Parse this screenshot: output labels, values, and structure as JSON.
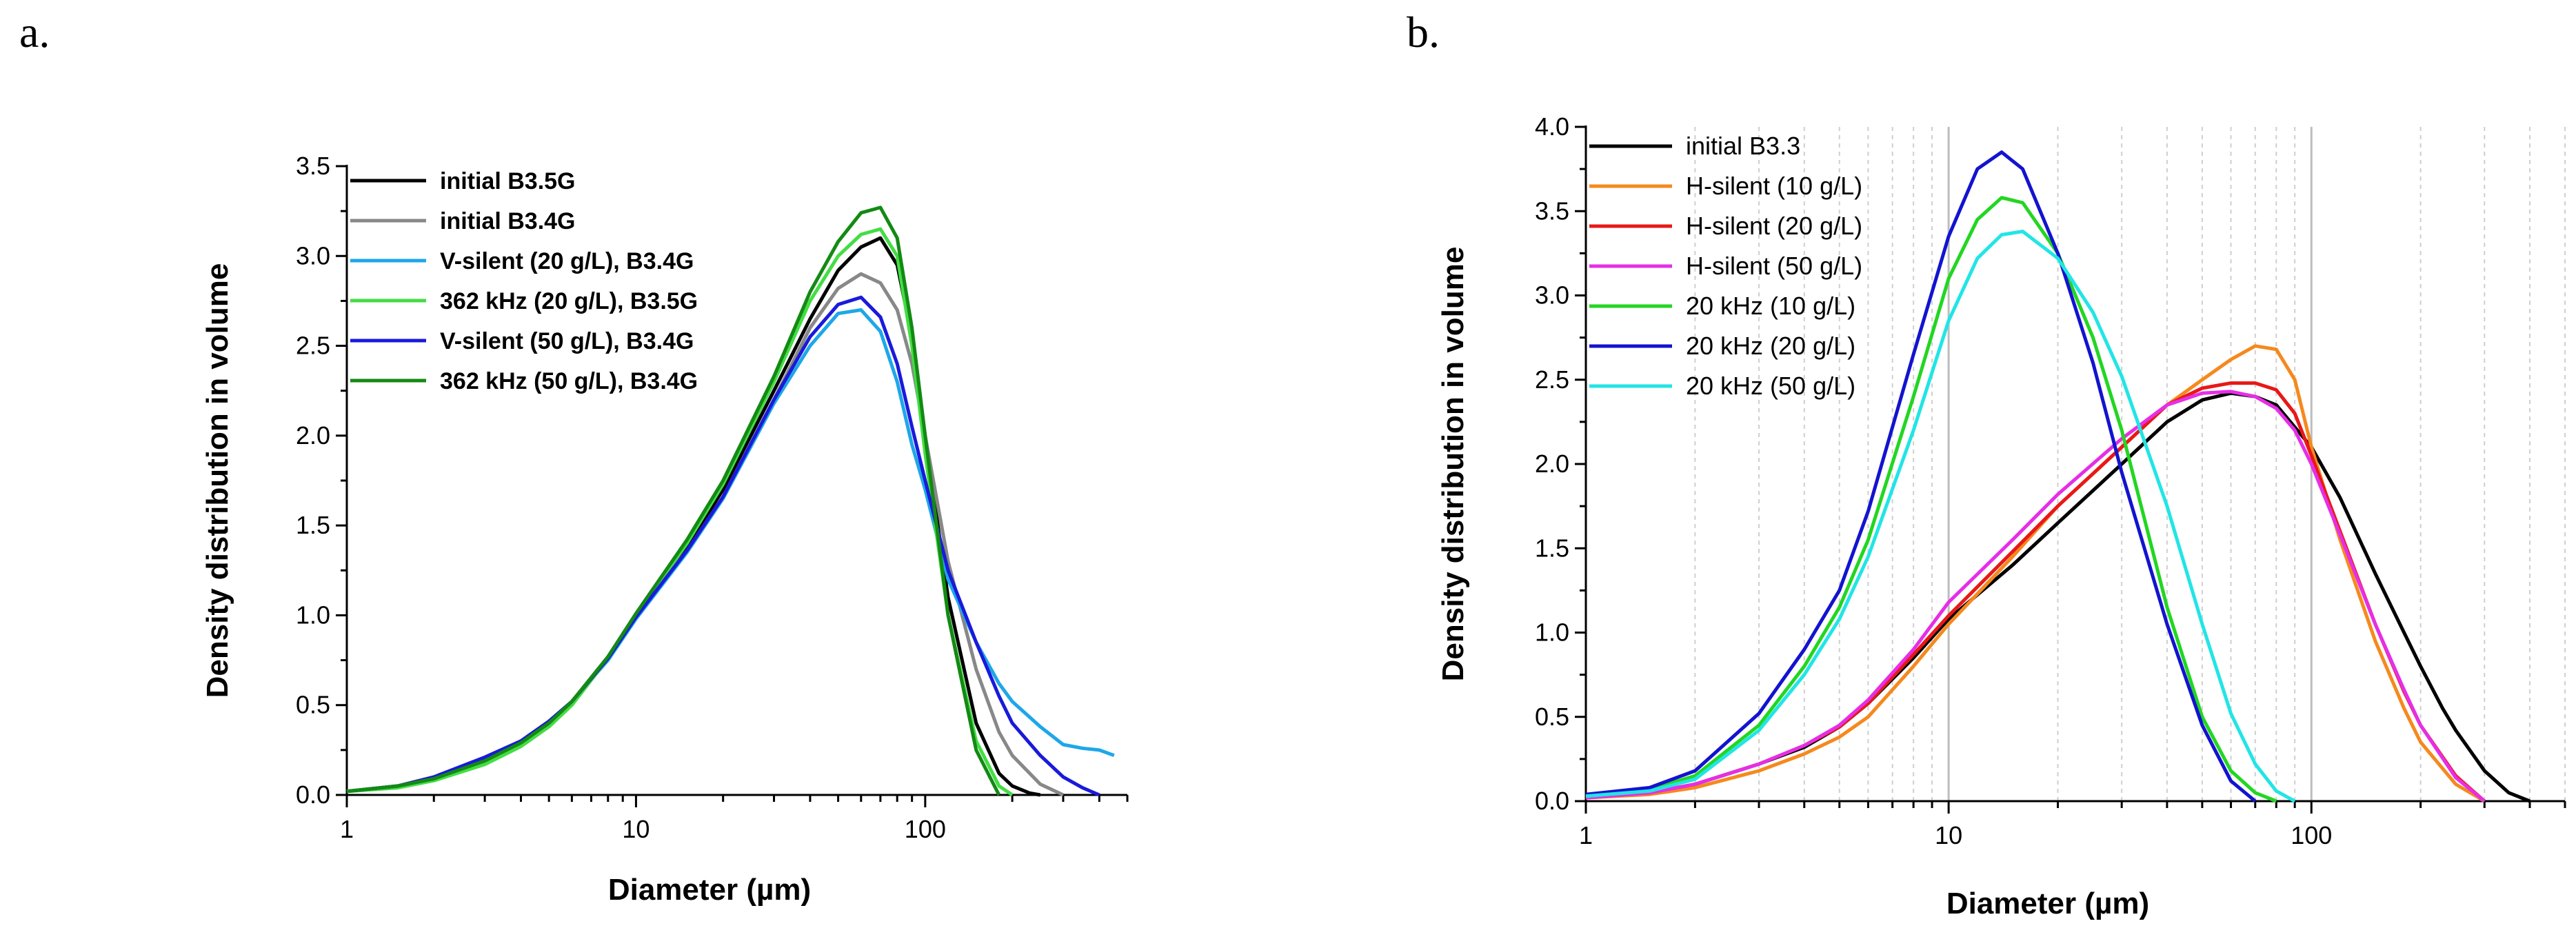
{
  "panel_labels": [
    "a.",
    "b."
  ],
  "chart_data": [
    {
      "type": "line",
      "panel": "a.",
      "xlabel": "Diameter (µm)",
      "ylabel": "Density distribution in volume",
      "xscale": "log",
      "xlim": [
        1,
        500
      ],
      "ylim": [
        0,
        3.5
      ],
      "xticks": [
        1,
        10,
        100
      ],
      "xtick_labels": [
        "1",
        "10",
        "100"
      ],
      "yticks": [
        0,
        0.5,
        1.0,
        1.5,
        2.0,
        2.5,
        3.0,
        3.5
      ],
      "ytick_labels": [
        "0.0",
        "0.5",
        "1.0",
        "1.5",
        "2.0",
        "2.5",
        "3.0",
        "3.5"
      ],
      "grid": false,
      "legend_position": "top-left",
      "series": [
        {
          "name": "initial B3.5G",
          "color": "#000000",
          "x": [
            1,
            1.5,
            2,
            3,
            4,
            5,
            6,
            8,
            10,
            15,
            20,
            30,
            40,
            50,
            60,
            70,
            80,
            90,
            100,
            120,
            150,
            180,
            200,
            230,
            250
          ],
          "y": [
            0.02,
            0.05,
            0.09,
            0.19,
            0.29,
            0.4,
            0.52,
            0.76,
            1.0,
            1.38,
            1.7,
            2.25,
            2.65,
            2.92,
            3.05,
            3.1,
            2.95,
            2.55,
            2.0,
            1.1,
            0.4,
            0.12,
            0.05,
            0.01,
            0
          ]
        },
        {
          "name": "initial B3.4G",
          "color": "#888888",
          "x": [
            1,
            1.5,
            2,
            3,
            4,
            5,
            6,
            8,
            10,
            15,
            20,
            30,
            40,
            50,
            60,
            70,
            80,
            90,
            100,
            120,
            150,
            180,
            200,
            250,
            300
          ],
          "y": [
            0.02,
            0.05,
            0.1,
            0.21,
            0.3,
            0.41,
            0.52,
            0.76,
            1.0,
            1.36,
            1.66,
            2.2,
            2.6,
            2.82,
            2.9,
            2.85,
            2.7,
            2.4,
            2.0,
            1.3,
            0.7,
            0.35,
            0.22,
            0.06,
            0
          ]
        },
        {
          "name": "V-silent (20 g/L), B3.4G",
          "color": "#1ea7e8",
          "x": [
            1,
            1.5,
            2,
            3,
            4,
            5,
            6,
            8,
            10,
            15,
            20,
            30,
            40,
            50,
            60,
            70,
            80,
            90,
            100,
            120,
            150,
            180,
            200,
            250,
            300,
            350,
            400,
            450
          ],
          "y": [
            0.02,
            0.05,
            0.09,
            0.2,
            0.3,
            0.41,
            0.52,
            0.75,
            0.98,
            1.35,
            1.65,
            2.18,
            2.5,
            2.68,
            2.7,
            2.58,
            2.3,
            1.95,
            1.7,
            1.2,
            0.85,
            0.62,
            0.52,
            0.38,
            0.28,
            0.26,
            0.25,
            0.22
          ]
        },
        {
          "name": "362 kHz (20 g/L), B3.5G",
          "color": "#44dd44",
          "x": [
            1,
            1.5,
            2,
            3,
            4,
            5,
            6,
            8,
            10,
            15,
            20,
            30,
            40,
            50,
            60,
            70,
            80,
            90,
            100,
            120,
            150,
            180,
            200
          ],
          "y": [
            0.02,
            0.04,
            0.08,
            0.17,
            0.27,
            0.38,
            0.5,
            0.76,
            1.0,
            1.4,
            1.73,
            2.3,
            2.75,
            3.0,
            3.12,
            3.15,
            3.0,
            2.5,
            1.9,
            1.0,
            0.3,
            0.05,
            0
          ]
        },
        {
          "name": "V-silent (50 g/L), B3.4G",
          "color": "#1a1adb",
          "x": [
            1,
            1.5,
            2,
            3,
            4,
            5,
            6,
            8,
            10,
            15,
            20,
            30,
            40,
            50,
            60,
            70,
            80,
            90,
            100,
            120,
            150,
            180,
            200,
            250,
            300,
            350,
            400
          ],
          "y": [
            0.02,
            0.05,
            0.1,
            0.21,
            0.3,
            0.41,
            0.52,
            0.76,
            0.99,
            1.36,
            1.66,
            2.2,
            2.55,
            2.73,
            2.77,
            2.66,
            2.4,
            2.05,
            1.75,
            1.25,
            0.85,
            0.55,
            0.4,
            0.22,
            0.1,
            0.04,
            0
          ]
        },
        {
          "name": "362 kHz (50 g/L), B3.4G",
          "color": "#138a13",
          "x": [
            1,
            1.5,
            2,
            3,
            4,
            5,
            6,
            8,
            10,
            15,
            20,
            30,
            40,
            50,
            60,
            70,
            80,
            90,
            100,
            120,
            150,
            180
          ],
          "y": [
            0.02,
            0.05,
            0.09,
            0.19,
            0.29,
            0.4,
            0.52,
            0.77,
            1.01,
            1.42,
            1.75,
            2.33,
            2.8,
            3.08,
            3.24,
            3.27,
            3.1,
            2.6,
            2.0,
            1.0,
            0.25,
            0
          ]
        }
      ]
    },
    {
      "type": "line",
      "panel": "b.",
      "xlabel": "Diameter (µm)",
      "ylabel": "Density distribution in volume",
      "xscale": "log",
      "xlim": [
        1,
        500
      ],
      "ylim": [
        0,
        4.0
      ],
      "xticks": [
        1,
        10,
        100
      ],
      "xtick_labels": [
        "1",
        "10",
        "100"
      ],
      "yticks": [
        0,
        0.5,
        1.0,
        1.5,
        2.0,
        2.5,
        3.0,
        3.5,
        4.0
      ],
      "ytick_labels": [
        "0.0",
        "0.5",
        "1.0",
        "1.5",
        "2.0",
        "2.5",
        "3.0",
        "3.5",
        "4.0"
      ],
      "grid": true,
      "legend_position": "top-left",
      "series": [
        {
          "name": "initial B3.3",
          "color": "#000000",
          "x": [
            1,
            1.5,
            2,
            3,
            4,
            5,
            6,
            8,
            10,
            15,
            20,
            30,
            40,
            50,
            60,
            70,
            80,
            100,
            120,
            150,
            180,
            200,
            230,
            250,
            300,
            350,
            400
          ],
          "y": [
            0.02,
            0.05,
            0.1,
            0.22,
            0.32,
            0.44,
            0.58,
            0.85,
            1.08,
            1.4,
            1.65,
            2.0,
            2.25,
            2.38,
            2.42,
            2.4,
            2.35,
            2.1,
            1.8,
            1.35,
            1.0,
            0.8,
            0.55,
            0.42,
            0.18,
            0.05,
            0
          ]
        },
        {
          "name": "H-silent (10 g/L)",
          "color": "#f5891e",
          "x": [
            1,
            1.5,
            2,
            3,
            4,
            5,
            6,
            8,
            10,
            15,
            20,
            30,
            40,
            50,
            60,
            70,
            80,
            90,
            100,
            120,
            150,
            180,
            200,
            250,
            300
          ],
          "y": [
            0.02,
            0.04,
            0.08,
            0.18,
            0.28,
            0.38,
            0.5,
            0.8,
            1.05,
            1.45,
            1.75,
            2.1,
            2.35,
            2.5,
            2.62,
            2.7,
            2.68,
            2.5,
            2.1,
            1.55,
            0.95,
            0.55,
            0.35,
            0.1,
            0
          ]
        },
        {
          "name": "H-silent (20 g/L)",
          "color": "#e81818",
          "x": [
            1,
            1.5,
            2,
            3,
            4,
            5,
            6,
            8,
            10,
            15,
            20,
            30,
            40,
            50,
            60,
            70,
            80,
            90,
            100,
            120,
            150,
            180,
            200,
            250,
            300
          ],
          "y": [
            0.02,
            0.05,
            0.1,
            0.22,
            0.33,
            0.44,
            0.58,
            0.87,
            1.1,
            1.48,
            1.75,
            2.1,
            2.35,
            2.45,
            2.48,
            2.48,
            2.44,
            2.3,
            2.05,
            1.6,
            1.05,
            0.65,
            0.45,
            0.15,
            0
          ]
        },
        {
          "name": "H-silent (50 g/L)",
          "color": "#e62ee6",
          "x": [
            1,
            1.5,
            2,
            3,
            4,
            5,
            6,
            8,
            10,
            15,
            20,
            30,
            40,
            50,
            60,
            70,
            80,
            90,
            100,
            120,
            150,
            180,
            200,
            250,
            300
          ],
          "y": [
            0.02,
            0.05,
            0.1,
            0.22,
            0.33,
            0.45,
            0.6,
            0.9,
            1.18,
            1.55,
            1.82,
            2.15,
            2.35,
            2.42,
            2.43,
            2.4,
            2.33,
            2.2,
            2.0,
            1.58,
            1.05,
            0.66,
            0.45,
            0.14,
            0
          ]
        },
        {
          "name": "20 kHz (10 g/L)",
          "color": "#22d622",
          "x": [
            1,
            1.5,
            2,
            3,
            4,
            5,
            6,
            8,
            10,
            12,
            14,
            16,
            20,
            25,
            30,
            40,
            50,
            60,
            70,
            80
          ],
          "y": [
            0.03,
            0.07,
            0.15,
            0.45,
            0.8,
            1.15,
            1.55,
            2.4,
            3.1,
            3.45,
            3.58,
            3.55,
            3.25,
            2.75,
            2.2,
            1.15,
            0.5,
            0.18,
            0.05,
            0
          ]
        },
        {
          "name": "20 kHz (20 g/L)",
          "color": "#1313cf",
          "x": [
            1,
            1.5,
            2,
            3,
            4,
            5,
            6,
            8,
            10,
            12,
            14,
            16,
            20,
            25,
            30,
            40,
            50,
            60,
            70
          ],
          "y": [
            0.04,
            0.08,
            0.18,
            0.52,
            0.9,
            1.25,
            1.72,
            2.65,
            3.35,
            3.75,
            3.85,
            3.75,
            3.25,
            2.6,
            1.95,
            1.05,
            0.45,
            0.12,
            0
          ]
        },
        {
          "name": "20 kHz (50 g/L)",
          "color": "#22e5e5",
          "x": [
            1,
            1.5,
            2,
            3,
            4,
            5,
            6,
            8,
            10,
            12,
            14,
            16,
            20,
            25,
            30,
            40,
            50,
            60,
            70,
            80,
            90
          ],
          "y": [
            0.03,
            0.06,
            0.13,
            0.42,
            0.75,
            1.08,
            1.45,
            2.2,
            2.85,
            3.22,
            3.36,
            3.38,
            3.22,
            2.9,
            2.52,
            1.75,
            1.05,
            0.52,
            0.22,
            0.06,
            0
          ]
        }
      ]
    }
  ]
}
